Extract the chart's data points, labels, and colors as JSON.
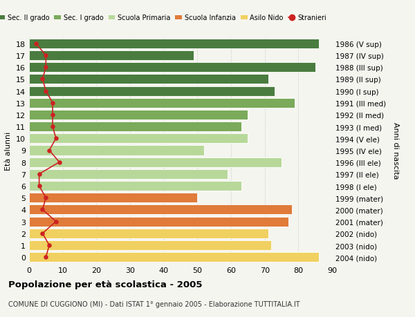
{
  "ages": [
    18,
    17,
    16,
    15,
    14,
    13,
    12,
    11,
    10,
    9,
    8,
    7,
    6,
    5,
    4,
    3,
    2,
    1,
    0
  ],
  "right_labels": [
    "1986 (V sup)",
    "1987 (IV sup)",
    "1988 (III sup)",
    "1989 (II sup)",
    "1990 (I sup)",
    "1991 (III med)",
    "1992 (II med)",
    "1993 (I med)",
    "1994 (V ele)",
    "1995 (IV ele)",
    "1996 (III ele)",
    "1997 (II ele)",
    "1998 (I ele)",
    "1999 (mater)",
    "2000 (mater)",
    "2001 (mater)",
    "2002 (nido)",
    "2003 (nido)",
    "2004 (nido)"
  ],
  "bar_values": [
    86,
    49,
    85,
    71,
    73,
    79,
    65,
    63,
    65,
    52,
    75,
    59,
    63,
    50,
    78,
    77,
    71,
    72,
    86
  ],
  "bar_colors": [
    "#4a7c3f",
    "#4a7c3f",
    "#4a7c3f",
    "#4a7c3f",
    "#4a7c3f",
    "#7aaa5a",
    "#7aaa5a",
    "#7aaa5a",
    "#b8d89a",
    "#b8d89a",
    "#b8d89a",
    "#b8d89a",
    "#b8d89a",
    "#e07b3a",
    "#e07b3a",
    "#e07b3a",
    "#f0d060",
    "#f0d060",
    "#f0d060"
  ],
  "stranieri_values": [
    2,
    5,
    5,
    4,
    5,
    7,
    7,
    7,
    8,
    6,
    9,
    3,
    3,
    5,
    4,
    8,
    4,
    6,
    5
  ],
  "legend_labels": [
    "Sec. II grado",
    "Sec. I grado",
    "Scuola Primaria",
    "Scuola Infanzia",
    "Asilo Nido",
    "Stranieri"
  ],
  "legend_colors": [
    "#4a7c3f",
    "#7aaa5a",
    "#b8d89a",
    "#e07b3a",
    "#f0d060",
    "#cc2222"
  ],
  "ylabel_left": "Età alunni",
  "ylabel_right": "Anni di nascita",
  "xlim": [
    0,
    90
  ],
  "xticks": [
    0,
    10,
    20,
    30,
    40,
    50,
    60,
    70,
    80,
    90
  ],
  "title": "Popolazione per età scolastica - 2005",
  "subtitle": "COMUNE DI CUGGIONO (MI) - Dati ISTAT 1° gennaio 2005 - Elaborazione TUTTITALIA.IT",
  "bg_color": "#f5f5ef",
  "grid_color": "#cccccc"
}
